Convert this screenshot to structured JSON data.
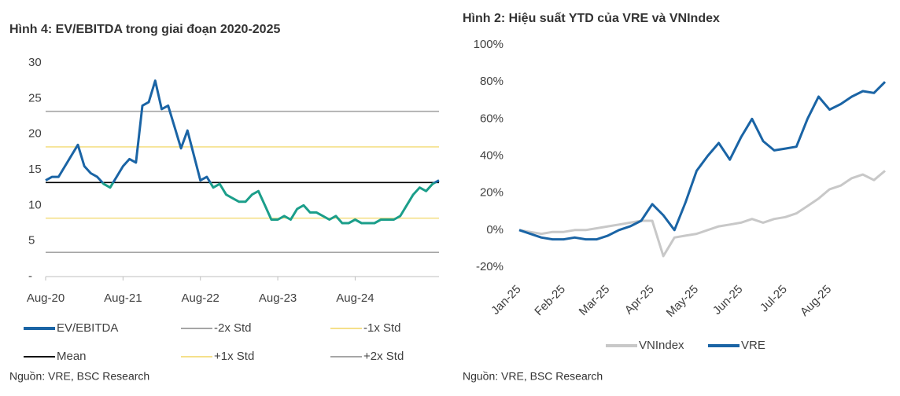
{
  "chart_data": [
    {
      "type": "line",
      "title": "Hình 4: EV/EBITDA trong giai đoạn 2020-2025",
      "source": "Nguồn: VRE, BSC Research",
      "categories": [
        "Aug-20",
        null,
        null,
        null,
        null,
        null,
        null,
        null,
        null,
        null,
        null,
        null,
        "Aug-21",
        null,
        null,
        null,
        null,
        null,
        null,
        null,
        null,
        null,
        null,
        null,
        "Aug-22",
        null,
        null,
        null,
        null,
        null,
        null,
        null,
        null,
        null,
        null,
        null,
        "Aug-23",
        null,
        null,
        null,
        null,
        null,
        null,
        null,
        null,
        null,
        null,
        null,
        "Aug-24",
        null,
        null,
        null,
        null,
        null,
        null,
        null,
        null,
        null,
        null,
        null,
        null,
        null
      ],
      "series": [
        {
          "name": "EV/EBITDA",
          "color": "#1a64a5",
          "color_below": "#1b9e8a",
          "values": [
            13.5,
            14,
            14,
            15.5,
            17,
            18.5,
            15.5,
            14.5,
            14,
            13,
            12.5,
            14,
            15.5,
            16.5,
            16,
            24,
            24.5,
            27.5,
            23.5,
            24,
            21,
            18,
            20.5,
            17,
            13.5,
            14,
            12.5,
            13,
            11.5,
            11,
            10.5,
            10.5,
            11.5,
            12,
            10,
            8,
            8,
            8.5,
            8,
            9.5,
            10,
            9,
            9,
            8.5,
            8,
            8.5,
            7.5,
            7.5,
            8,
            7.5,
            7.5,
            7.5,
            8,
            8,
            8,
            8.5,
            10,
            11.5,
            12.5,
            12,
            13,
            13.5
          ]
        }
      ],
      "reference_lines": [
        {
          "name": "-2x Std",
          "value": 3.4,
          "color": "#a6a6a6"
        },
        {
          "name": "-1x Std",
          "value": 8.2,
          "color": "#f5e08a"
        },
        {
          "name": "Mean",
          "value": 13.2,
          "color": "#000000",
          "splits_series_color": true
        },
        {
          "name": "+1x Std",
          "value": 18.2,
          "color": "#f5e08a"
        },
        {
          "name": "+2x Std",
          "value": 23.2,
          "color": "#a6a6a6"
        }
      ],
      "ylim": [
        0,
        30
      ],
      "yticks": [
        {
          "value": 0,
          "label": "-"
        },
        5,
        10,
        15,
        20,
        25,
        30
      ]
    },
    {
      "type": "line",
      "title": "Hình 2: Hiệu suất YTD của VRE và VNIndex",
      "source": "Nguồn: VRE, BSC Research",
      "categories": [
        "Jan-25",
        null,
        null,
        null,
        "Feb-25",
        null,
        null,
        null,
        "Mar-25",
        null,
        null,
        null,
        "Apr-25",
        null,
        null,
        null,
        "May-25",
        null,
        null,
        null,
        "Jun-25",
        null,
        null,
        null,
        "Jul-25",
        null,
        null,
        null,
        "Aug-25",
        null,
        null,
        null,
        null,
        null
      ],
      "series": [
        {
          "name": "VNIndex",
          "color": "#c8c8c8",
          "values": [
            0,
            -1,
            -2,
            -1,
            -1,
            0,
            0,
            1,
            2,
            3,
            4,
            5,
            5,
            -14,
            -4,
            -3,
            -2,
            0,
            2,
            3,
            4,
            6,
            4,
            6,
            7,
            9,
            13,
            17,
            22,
            24,
            28,
            30,
            27,
            32
          ]
        },
        {
          "name": "VRE",
          "color": "#1a64a5",
          "values": [
            0,
            -2,
            -4,
            -5,
            -5,
            -4,
            -5,
            -5,
            -3,
            0,
            2,
            5,
            14,
            8,
            0,
            15,
            32,
            40,
            47,
            38,
            50,
            60,
            48,
            43,
            44,
            45,
            60,
            72,
            65,
            68,
            72,
            75,
            74,
            80
          ]
        }
      ],
      "ylim": [
        -20,
        100
      ],
      "yticks": [
        {
          "value": -20,
          "label": "-20%"
        },
        {
          "value": 0,
          "label": "0%"
        },
        {
          "value": 20,
          "label": "20%"
        },
        {
          "value": 40,
          "label": "40%"
        },
        {
          "value": 60,
          "label": "60%"
        },
        {
          "value": 80,
          "label": "80%"
        },
        {
          "value": 100,
          "label": "100%"
        }
      ]
    }
  ]
}
